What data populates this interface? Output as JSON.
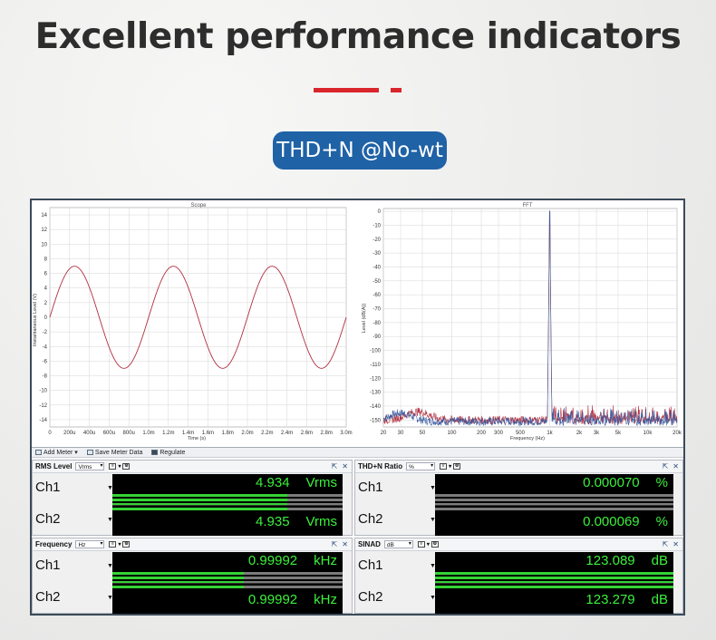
{
  "headline": "Excellent performance indicators",
  "badge": "THD+N @No-wt",
  "colors": {
    "accent_red": "#d9262c",
    "badge_blue": "#1f62a6",
    "meter_green": "#3cf03c",
    "trace": "#b0303f"
  },
  "scope": {
    "title": "Scope",
    "xlabel": "Time (s)",
    "ylabel": "Instantaneous Level (V)",
    "y_ticks": [
      "14",
      "12",
      "10",
      "8",
      "6",
      "4",
      "2",
      "0",
      "-2",
      "-4",
      "-6",
      "-8",
      "-10",
      "-12",
      "-14"
    ],
    "x_ticks": [
      "0",
      "200u",
      "400u",
      "600u",
      "800u",
      "1.0m",
      "1.2m",
      "1.4m",
      "1.6m",
      "1.8m",
      "2.0m",
      "2.2m",
      "2.4m",
      "2.6m",
      "2.8m",
      "3.0m"
    ]
  },
  "fft": {
    "title": "FFT",
    "xlabel": "Frequency (Hz)",
    "ylabel": "Level (dB(A))",
    "y_ticks": [
      "0",
      "-10",
      "-20",
      "-30",
      "-40",
      "-50",
      "-60",
      "-70",
      "-80",
      "-90",
      "-100",
      "-110",
      "-120",
      "-130",
      "-140",
      "-150"
    ],
    "x_ticks": [
      "20",
      "30",
      "50",
      "100",
      "200",
      "300",
      "500",
      "1k",
      "2k",
      "3k",
      "5k",
      "10k",
      "20k"
    ]
  },
  "chart_data": [
    {
      "type": "line",
      "title": "Scope",
      "xlabel": "Time (s)",
      "ylabel": "Instantaneous Level (V)",
      "xlim": [
        0,
        0.003
      ],
      "ylim": [
        -15,
        15
      ],
      "grid": true,
      "series": [
        {
          "amplitude_v": 6.98,
          "frequency_hz": 1000,
          "phase": "sine starting at 0"
        }
      ]
    },
    {
      "type": "line",
      "title": "FFT",
      "xlabel": "Frequency (Hz)",
      "ylabel": "Level (dB(A))",
      "x_scale": "log",
      "xlim": [
        20,
        20000
      ],
      "ylim": [
        -155,
        2
      ],
      "grid": true,
      "peak": {
        "x": 1000,
        "y": 0
      },
      "noise_floor_db": -150
    }
  ],
  "toolbar": {
    "add_meter": "Add Meter",
    "save_meter_data": "Save Meter Data",
    "regulate": "Regulate"
  },
  "meters": {
    "rms": {
      "title": "RMS Level",
      "unit_sel": "Vrms",
      "ch1_label": "Ch1",
      "ch2_label": "Ch2",
      "ch1_value": "4.934",
      "ch2_value": "4.935",
      "unit": "Vrms",
      "ch1_fill": 0.76,
      "ch2_fill": 0.76
    },
    "thdn": {
      "title": "THD+N Ratio",
      "unit_sel": "%",
      "ch1_label": "Ch1",
      "ch2_label": "Ch2",
      "ch1_value": "0.000070",
      "ch2_value": "0.000069",
      "unit": "%",
      "ch1_fill": 0.0,
      "ch2_fill": 0.0
    },
    "freq": {
      "title": "Frequency",
      "unit_sel": "Hz",
      "ch1_label": "Ch1",
      "ch2_label": "Ch2",
      "ch1_value": "0.99992",
      "ch2_value": "0.99992",
      "unit": "kHz",
      "ch1_fill": 0.57,
      "ch2_fill": 0.57
    },
    "sinad": {
      "title": "SINAD",
      "unit_sel": "dB",
      "ch1_label": "Ch1",
      "ch2_label": "Ch2",
      "ch1_value": "123.089",
      "ch2_value": "123.279",
      "unit": "dB",
      "ch1_fill": 1.0,
      "ch2_fill": 1.0
    }
  }
}
